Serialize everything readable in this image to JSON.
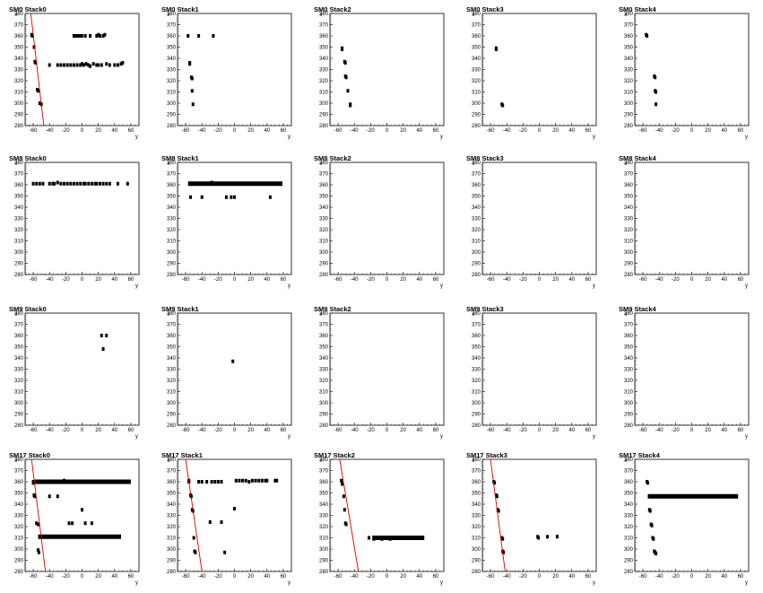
{
  "axes": {
    "x_label": "y",
    "y_label": "x",
    "xlim": [
      -70,
      70
    ],
    "ylim": [
      280,
      380
    ],
    "x_ticks": [
      -60,
      -40,
      -20,
      0,
      20,
      40,
      60
    ],
    "y_ticks": [
      280,
      290,
      300,
      310,
      320,
      330,
      340,
      350,
      360,
      370,
      380
    ]
  },
  "colors": {
    "points": "#000000",
    "fit_line": "#d40000",
    "frame": "#000000"
  },
  "chart_data": [
    {
      "type": "scatter",
      "title": "SM0 Stack0",
      "xlabel": "y",
      "ylabel": "x",
      "xlim": [
        -70,
        70
      ],
      "ylim": [
        280,
        380
      ],
      "points": [
        [
          -62,
          361
        ],
        [
          -61,
          360
        ],
        [
          -59,
          350
        ],
        [
          -58,
          337
        ],
        [
          -57,
          336
        ],
        [
          -55,
          312
        ],
        [
          -54,
          311
        ],
        [
          -52,
          300
        ],
        [
          -50,
          299
        ],
        [
          -40,
          334
        ],
        [
          -30,
          334
        ],
        [
          -26,
          334
        ],
        [
          -22,
          334
        ],
        [
          -18,
          334
        ],
        [
          -14,
          334
        ],
        [
          -10,
          334
        ],
        [
          -6,
          334
        ],
        [
          -2,
          334
        ],
        [
          0,
          335
        ],
        [
          2,
          334
        ],
        [
          5,
          335
        ],
        [
          8,
          334
        ],
        [
          10,
          333
        ],
        [
          14,
          335
        ],
        [
          18,
          334
        ],
        [
          20,
          334
        ],
        [
          24,
          334
        ],
        [
          30,
          335
        ],
        [
          34,
          334
        ],
        [
          40,
          334
        ],
        [
          44,
          334
        ],
        [
          48,
          335
        ],
        [
          50,
          336
        ],
        [
          -10,
          360
        ],
        [
          -7,
          360
        ],
        [
          -4,
          360
        ],
        [
          -1,
          360
        ],
        [
          0,
          360
        ],
        [
          4,
          360
        ],
        [
          10,
          360
        ],
        [
          18,
          360
        ],
        [
          20,
          361
        ],
        [
          22,
          360
        ],
        [
          26,
          360
        ],
        [
          28,
          361
        ]
      ],
      "fit": [
        [
          -63,
          380
        ],
        [
          -47,
          280
        ]
      ]
    },
    {
      "type": "scatter",
      "title": "SM0 Stack1",
      "xlabel": "y",
      "ylabel": "x",
      "xlim": [
        -70,
        70
      ],
      "ylim": [
        280,
        380
      ],
      "points": [
        [
          -57,
          360
        ],
        [
          -44,
          360
        ],
        [
          -26,
          360
        ],
        [
          -55,
          336
        ],
        [
          -55,
          335
        ],
        [
          -53,
          323
        ],
        [
          -52,
          322
        ],
        [
          -52,
          311
        ],
        [
          -51,
          299
        ]
      ]
    },
    {
      "type": "scatter",
      "title": "SM0 Stack2",
      "xlabel": "y",
      "ylabel": "x",
      "xlim": [
        -70,
        70
      ],
      "ylim": [
        280,
        380
      ],
      "points": [
        [
          -55,
          349
        ],
        [
          -55,
          348
        ],
        [
          -52,
          337
        ],
        [
          -51,
          336
        ],
        [
          -51,
          324
        ],
        [
          -50,
          323
        ],
        [
          -48,
          311
        ],
        [
          -45,
          299
        ],
        [
          -45,
          298
        ]
      ]
    },
    {
      "type": "scatter",
      "title": "SM0 Stack3",
      "xlabel": "y",
      "ylabel": "x",
      "xlim": [
        -70,
        70
      ],
      "ylim": [
        280,
        380
      ],
      "points": [
        [
          -53,
          349
        ],
        [
          -53,
          348
        ],
        [
          -46,
          299
        ],
        [
          -45,
          298
        ]
      ]
    },
    {
      "type": "scatter",
      "title": "SM0 Stack4",
      "xlabel": "y",
      "ylabel": "x",
      "xlim": [
        -70,
        70
      ],
      "ylim": [
        280,
        380
      ],
      "points": [
        [
          -56,
          361
        ],
        [
          -55,
          360
        ],
        [
          -46,
          324
        ],
        [
          -45,
          323
        ],
        [
          -45,
          311
        ],
        [
          -44,
          310
        ],
        [
          -44,
          299
        ]
      ]
    },
    {
      "type": "scatter",
      "title": "SM8 Stack0",
      "xlabel": "y",
      "ylabel": "x",
      "xlim": [
        -70,
        70
      ],
      "ylim": [
        280,
        380
      ],
      "points": [
        [
          -60,
          361
        ],
        [
          -56,
          361
        ],
        [
          -52,
          361
        ],
        [
          -48,
          361
        ],
        [
          -40,
          361
        ],
        [
          -36,
          361
        ],
        [
          -34,
          361
        ],
        [
          -30,
          362
        ],
        [
          -26,
          361
        ],
        [
          -22,
          361
        ],
        [
          -18,
          361
        ],
        [
          -14,
          361
        ],
        [
          -10,
          361
        ],
        [
          -6,
          361
        ],
        [
          -2,
          361
        ],
        [
          2,
          361
        ],
        [
          4,
          361
        ],
        [
          8,
          361
        ],
        [
          12,
          361
        ],
        [
          16,
          361
        ],
        [
          18,
          361
        ],
        [
          22,
          361
        ],
        [
          26,
          361
        ],
        [
          30,
          361
        ],
        [
          34,
          361
        ],
        [
          44,
          361
        ],
        [
          56,
          361
        ]
      ]
    },
    {
      "type": "scatter",
      "title": "SM8 Stack1",
      "xlabel": "y",
      "ylabel": "x",
      "xlim": [
        -70,
        70
      ],
      "ylim": [
        280,
        380
      ],
      "points": [
        [
          -54,
          349
        ],
        [
          -40,
          349
        ],
        [
          -10,
          349
        ],
        [
          -4,
          349
        ],
        [
          0,
          349
        ],
        [
          44,
          349
        ],
        [
          -28,
          362
        ]
      ],
      "bands": [
        {
          "x0": -57,
          "x1": 59,
          "y": 361
        }
      ]
    },
    {
      "type": "scatter",
      "title": "SM8 Stack2",
      "xlabel": "y",
      "ylabel": "x",
      "xlim": [
        -70,
        70
      ],
      "ylim": [
        280,
        380
      ],
      "points": []
    },
    {
      "type": "scatter",
      "title": "SM8 Stack3",
      "xlabel": "y",
      "ylabel": "x",
      "xlim": [
        -70,
        70
      ],
      "ylim": [
        280,
        380
      ],
      "points": []
    },
    {
      "type": "scatter",
      "title": "SM8 Stack4",
      "xlabel": "y",
      "ylabel": "x",
      "xlim": [
        -70,
        70
      ],
      "ylim": [
        280,
        380
      ],
      "points": []
    },
    {
      "type": "scatter",
      "title": "SM9 Stack0",
      "xlabel": "y",
      "ylabel": "x",
      "xlim": [
        -70,
        70
      ],
      "ylim": [
        280,
        380
      ],
      "points": [
        [
          24,
          360
        ],
        [
          30,
          360
        ],
        [
          26,
          348
        ]
      ]
    },
    {
      "type": "scatter",
      "title": "SM9 Stack1",
      "xlabel": "y",
      "ylabel": "x",
      "xlim": [
        -70,
        70
      ],
      "ylim": [
        280,
        380
      ],
      "points": [
        [
          -2,
          337
        ]
      ]
    },
    {
      "type": "scatter",
      "title": "SM9 Stack2",
      "xlabel": "y",
      "ylabel": "x",
      "xlim": [
        -70,
        70
      ],
      "ylim": [
        280,
        380
      ],
      "points": []
    },
    {
      "type": "scatter",
      "title": "SM9 Stack3",
      "xlabel": "y",
      "ylabel": "x",
      "xlim": [
        -70,
        70
      ],
      "ylim": [
        280,
        380
      ],
      "points": []
    },
    {
      "type": "scatter",
      "title": "SM9 Stack4",
      "xlabel": "y",
      "ylabel": "x",
      "xlim": [
        -70,
        70
      ],
      "ylim": [
        280,
        380
      ],
      "points": []
    },
    {
      "type": "scatter",
      "title": "SM17 Stack0",
      "xlabel": "y",
      "ylabel": "x",
      "xlim": [
        -70,
        70
      ],
      "ylim": [
        280,
        380
      ],
      "points": [
        [
          -60,
          360
        ],
        [
          -60,
          359
        ],
        [
          -59,
          348
        ],
        [
          -58,
          347
        ],
        [
          -56,
          323
        ],
        [
          -54,
          322
        ],
        [
          -54,
          299
        ],
        [
          -53,
          297
        ],
        [
          -40,
          347
        ],
        [
          -30,
          347
        ],
        [
          -16,
          323
        ],
        [
          -12,
          323
        ],
        [
          4,
          323
        ],
        [
          12,
          323
        ],
        [
          0,
          335
        ],
        [
          -22,
          361
        ],
        [
          -28,
          360
        ]
      ],
      "bands": [
        {
          "x0": -59,
          "x1": 60,
          "y": 360
        },
        {
          "x0": -54,
          "x1": 48,
          "y": 311
        }
      ],
      "fit": [
        [
          -62,
          380
        ],
        [
          -45,
          280
        ]
      ]
    },
    {
      "type": "scatter",
      "title": "SM17 Stack1",
      "xlabel": "y",
      "ylabel": "x",
      "xlim": [
        -70,
        70
      ],
      "ylim": [
        280,
        380
      ],
      "points": [
        [
          -56,
          361
        ],
        [
          -56,
          360
        ],
        [
          -54,
          348
        ],
        [
          -53,
          347
        ],
        [
          -52,
          335
        ],
        [
          -51,
          334
        ],
        [
          -50,
          310
        ],
        [
          -49,
          298
        ],
        [
          -48,
          297
        ],
        [
          -44,
          360
        ],
        [
          -40,
          360
        ],
        [
          -34,
          360
        ],
        [
          -28,
          360
        ],
        [
          -24,
          360
        ],
        [
          -20,
          360
        ],
        [
          -16,
          360
        ],
        [
          -30,
          324
        ],
        [
          -16,
          324
        ],
        [
          -12,
          297
        ],
        [
          0,
          336
        ],
        [
          2,
          361
        ],
        [
          6,
          361
        ],
        [
          10,
          361
        ],
        [
          14,
          361
        ],
        [
          18,
          360
        ],
        [
          22,
          361
        ],
        [
          26,
          361
        ],
        [
          30,
          361
        ],
        [
          34,
          361
        ],
        [
          38,
          361
        ],
        [
          40,
          361
        ],
        [
          50,
          361
        ],
        [
          52,
          361
        ]
      ],
      "fit": [
        [
          -60,
          380
        ],
        [
          -40,
          280
        ]
      ]
    },
    {
      "type": "scatter",
      "title": "SM17 Stack2",
      "xlabel": "y",
      "ylabel": "x",
      "xlim": [
        -70,
        70
      ],
      "ylim": [
        280,
        380
      ],
      "points": [
        [
          -56,
          361
        ],
        [
          -55,
          358
        ],
        [
          -53,
          347
        ],
        [
          -52,
          335
        ],
        [
          -51,
          323
        ],
        [
          -50,
          322
        ],
        [
          -22,
          310
        ],
        [
          -16,
          309
        ],
        [
          -10,
          310
        ],
        [
          -6,
          309
        ],
        [
          0,
          310
        ],
        [
          4,
          309
        ],
        [
          10,
          310
        ]
      ],
      "bands": [
        {
          "x0": -18,
          "x1": 46,
          "y": 310
        }
      ],
      "fit": [
        [
          -58,
          380
        ],
        [
          -35,
          280
        ]
      ]
    },
    {
      "type": "scatter",
      "title": "SM17 Stack3",
      "xlabel": "y",
      "ylabel": "x",
      "xlim": [
        -70,
        70
      ],
      "ylim": [
        280,
        380
      ],
      "points": [
        [
          -56,
          360
        ],
        [
          -55,
          359
        ],
        [
          -53,
          348
        ],
        [
          -52,
          347
        ],
        [
          -51,
          335
        ],
        [
          -50,
          334
        ],
        [
          -46,
          310
        ],
        [
          -45,
          309
        ],
        [
          -45,
          298
        ],
        [
          -44,
          297
        ],
        [
          -2,
          311
        ],
        [
          -1,
          310
        ],
        [
          10,
          311
        ],
        [
          22,
          311
        ]
      ],
      "fit": [
        [
          -60,
          380
        ],
        [
          -42,
          280
        ]
      ]
    },
    {
      "type": "scatter",
      "title": "SM17 Stack4",
      "xlabel": "y",
      "ylabel": "x",
      "xlim": [
        -70,
        70
      ],
      "ylim": [
        280,
        380
      ],
      "points": [
        [
          -55,
          360
        ],
        [
          -54,
          359
        ],
        [
          -52,
          335
        ],
        [
          -51,
          334
        ],
        [
          -50,
          322
        ],
        [
          -49,
          321
        ],
        [
          -48,
          310
        ],
        [
          -47,
          309
        ],
        [
          -46,
          298
        ],
        [
          -45,
          297
        ],
        [
          -44,
          296
        ]
      ],
      "bands": [
        {
          "x0": -54,
          "x1": 57,
          "y": 347
        }
      ]
    }
  ]
}
